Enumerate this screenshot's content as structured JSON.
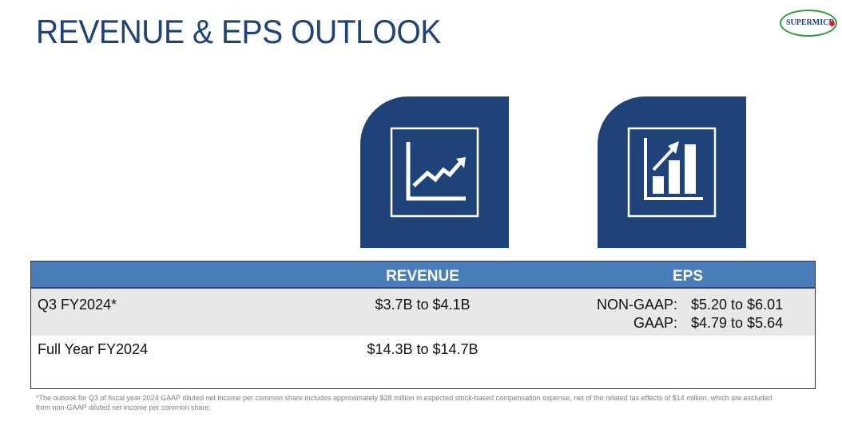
{
  "header": {
    "title": "REVENUE & EPS OUTLOOK",
    "logo": "SUPERMICR"
  },
  "table": {
    "columns": [
      "REVENUE",
      "EPS"
    ],
    "rows": [
      {
        "label": "Q3 FY2024*",
        "revenue": "$3.7B to $4.1B",
        "eps": [
          {
            "label": "NON-GAAP:",
            "value": "$5.20 to $6.01"
          },
          {
            "label": "GAAP:",
            "value": "$4.79 to $5.64"
          }
        ]
      },
      {
        "label": "Full Year FY2024",
        "revenue": "$14.3B to $14.7B",
        "eps": []
      }
    ]
  },
  "footnote": "*The outlook for Q3 of fiscal year 2024 GAAP diluted net income per common share includes approximately $28 million in expected stock-based compensation expense, net of the related tax effects of $14 million, which are excluded from non-GAAP diluted net income per common share."
}
